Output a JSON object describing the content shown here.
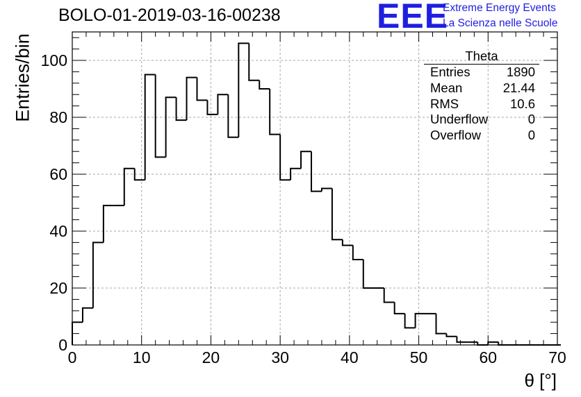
{
  "chart_data": {
    "type": "histogram",
    "title": "BOLO-01-2019-03-16-00238",
    "xlabel": "θ [°]",
    "ylabel": "Entries/bin",
    "xlim": [
      0,
      70
    ],
    "ylim": [
      0,
      110
    ],
    "bin_width": 1.5,
    "xticks": [
      0,
      10,
      20,
      30,
      40,
      50,
      60,
      70
    ],
    "yticks": [
      0,
      20,
      40,
      60,
      80,
      100
    ],
    "grid": true,
    "values": [
      8,
      13,
      36,
      49,
      49,
      62,
      58,
      95,
      66,
      87,
      79,
      94,
      86,
      81,
      88,
      73,
      106,
      93,
      90,
      74,
      58,
      62,
      68,
      54,
      55,
      37,
      35,
      30,
      20,
      20,
      15,
      11,
      6,
      11,
      11,
      4,
      3,
      1,
      1,
      0,
      1,
      0,
      0,
      0,
      0,
      0,
      0
    ]
  },
  "stats_box": {
    "title": "Theta",
    "rows": [
      {
        "label": "Entries",
        "value": "1890"
      },
      {
        "label": "Mean",
        "value": "21.44"
      },
      {
        "label": "RMS",
        "value": "10.6"
      },
      {
        "label": "Underflow",
        "value": "0"
      },
      {
        "label": "Overflow",
        "value": "0"
      }
    ]
  },
  "logo": {
    "text": "EEE",
    "line1": "Extreme Energy Events",
    "line2": "La Scienza nelle Scuole",
    "color": "#1f1fe0"
  }
}
